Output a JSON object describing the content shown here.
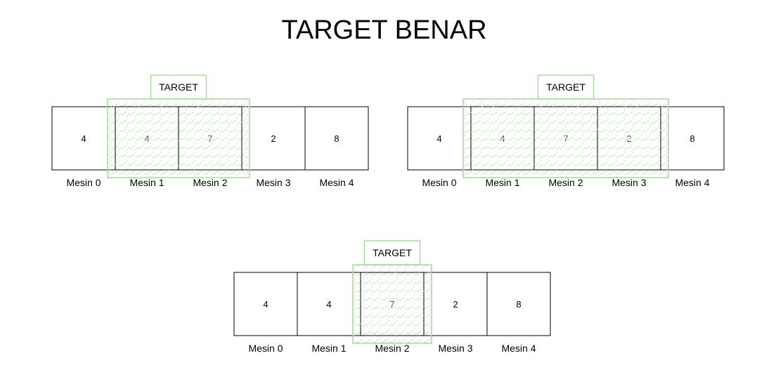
{
  "title": "TARGET BENAR",
  "target_label": "TARGET",
  "colors": {
    "target_stroke": "#a8d8a0",
    "target_hatch": "#c9e6c3",
    "box_stroke": "#000000"
  },
  "groups": [
    {
      "machines": [
        {
          "label": "Mesin 0",
          "value": "4"
        },
        {
          "label": "Mesin 1",
          "value": "4"
        },
        {
          "label": "Mesin 2",
          "value": "7"
        },
        {
          "label": "Mesin 3",
          "value": "2"
        },
        {
          "label": "Mesin 4",
          "value": "8"
        }
      ],
      "target_range": [
        1,
        2
      ]
    },
    {
      "machines": [
        {
          "label": "Mesin 0",
          "value": "4"
        },
        {
          "label": "Mesin 1",
          "value": "4"
        },
        {
          "label": "Mesin 2",
          "value": "7"
        },
        {
          "label": "Mesin 3",
          "value": "2"
        },
        {
          "label": "Mesin 4",
          "value": "8"
        }
      ],
      "target_range": [
        1,
        3
      ]
    },
    {
      "machines": [
        {
          "label": "Mesin 0",
          "value": "4"
        },
        {
          "label": "Mesin 1",
          "value": "4"
        },
        {
          "label": "Mesin 2",
          "value": "7"
        },
        {
          "label": "Mesin 3",
          "value": "2"
        },
        {
          "label": "Mesin 4",
          "value": "8"
        }
      ],
      "target_range": [
        2,
        2
      ]
    }
  ]
}
